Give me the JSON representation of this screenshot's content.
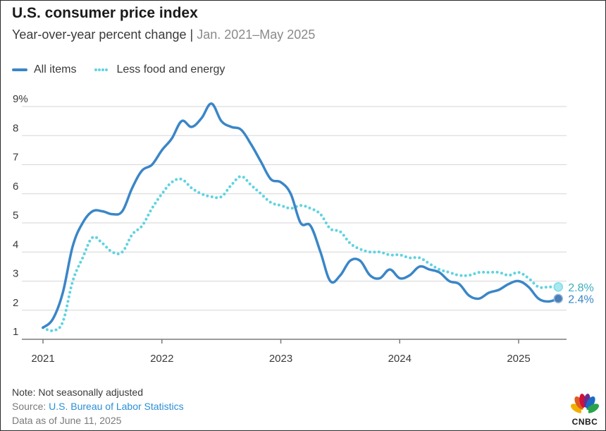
{
  "chart_data": {
    "type": "line",
    "title": "U.S. consumer price index",
    "subtitle_main": "Year-over-year percent change",
    "subtitle_sep": "|",
    "subtitle_range": "Jan. 2021–May 2025",
    "ylim": [
      1,
      9
    ],
    "y_ticks": [
      1,
      2,
      3,
      4,
      5,
      6,
      7,
      8,
      9
    ],
    "y_tick_labels": [
      "1",
      "2",
      "3",
      "4",
      "5",
      "6",
      "7",
      "8",
      "9%"
    ],
    "x_ticks": [
      "2021",
      "2022",
      "2023",
      "2024",
      "2025"
    ],
    "grid": true,
    "legend_position": "top-left",
    "series": [
      {
        "name": "All items",
        "color": "#3a86c8",
        "style": "solid",
        "end_label": "2.4%",
        "x": [
          "2021-01",
          "2021-02",
          "2021-03",
          "2021-04",
          "2021-05",
          "2021-06",
          "2021-07",
          "2021-08",
          "2021-09",
          "2021-10",
          "2021-11",
          "2021-12",
          "2022-01",
          "2022-02",
          "2022-03",
          "2022-04",
          "2022-05",
          "2022-06",
          "2022-07",
          "2022-08",
          "2022-09",
          "2022-10",
          "2022-11",
          "2022-12",
          "2023-01",
          "2023-02",
          "2023-03",
          "2023-04",
          "2023-05",
          "2023-06",
          "2023-07",
          "2023-08",
          "2023-09",
          "2023-10",
          "2023-11",
          "2023-12",
          "2024-01",
          "2024-02",
          "2024-03",
          "2024-04",
          "2024-05",
          "2024-06",
          "2024-07",
          "2024-08",
          "2024-09",
          "2024-10",
          "2024-11",
          "2024-12",
          "2025-01",
          "2025-02",
          "2025-03",
          "2025-04",
          "2025-05"
        ],
        "values": [
          1.4,
          1.7,
          2.6,
          4.2,
          5.0,
          5.4,
          5.4,
          5.3,
          5.4,
          6.2,
          6.8,
          7.0,
          7.5,
          7.9,
          8.5,
          8.3,
          8.6,
          9.1,
          8.5,
          8.3,
          8.2,
          7.7,
          7.1,
          6.5,
          6.4,
          6.0,
          5.0,
          4.9,
          4.0,
          3.0,
          3.2,
          3.7,
          3.7,
          3.2,
          3.1,
          3.4,
          3.1,
          3.2,
          3.5,
          3.4,
          3.3,
          3.0,
          2.9,
          2.5,
          2.4,
          2.6,
          2.7,
          2.9,
          3.0,
          2.8,
          2.4,
          2.3,
          2.4
        ]
      },
      {
        "name": "Less food and energy",
        "color": "#5fd3e0",
        "style": "dotted",
        "end_label": "2.8%",
        "x": [
          "2021-01",
          "2021-02",
          "2021-03",
          "2021-04",
          "2021-05",
          "2021-06",
          "2021-07",
          "2021-08",
          "2021-09",
          "2021-10",
          "2021-11",
          "2021-12",
          "2022-01",
          "2022-02",
          "2022-03",
          "2022-04",
          "2022-05",
          "2022-06",
          "2022-07",
          "2022-08",
          "2022-09",
          "2022-10",
          "2022-11",
          "2022-12",
          "2023-01",
          "2023-02",
          "2023-03",
          "2023-04",
          "2023-05",
          "2023-06",
          "2023-07",
          "2023-08",
          "2023-09",
          "2023-10",
          "2023-11",
          "2023-12",
          "2024-01",
          "2024-02",
          "2024-03",
          "2024-04",
          "2024-05",
          "2024-06",
          "2024-07",
          "2024-08",
          "2024-09",
          "2024-10",
          "2024-11",
          "2024-12",
          "2025-01",
          "2025-02",
          "2025-03",
          "2025-04",
          "2025-05"
        ],
        "values": [
          1.4,
          1.3,
          1.6,
          3.0,
          3.8,
          4.5,
          4.3,
          4.0,
          4.0,
          4.6,
          4.9,
          5.5,
          6.0,
          6.4,
          6.5,
          6.2,
          6.0,
          5.9,
          5.9,
          6.3,
          6.6,
          6.3,
          6.0,
          5.7,
          5.6,
          5.5,
          5.6,
          5.5,
          5.3,
          4.8,
          4.7,
          4.3,
          4.1,
          4.0,
          4.0,
          3.9,
          3.9,
          3.8,
          3.8,
          3.6,
          3.4,
          3.3,
          3.2,
          3.2,
          3.3,
          3.3,
          3.3,
          3.2,
          3.3,
          3.1,
          2.8,
          2.8,
          2.8
        ]
      }
    ]
  },
  "notes": {
    "note": "Note: Not seasonally adjusted",
    "source_label": "Source: ",
    "source_link": "U.S. Bureau of Labor Statistics",
    "as_of": "Data as of June 11, 2025"
  },
  "logo": {
    "text": "CNBC",
    "icon": "nbc-peacock-icon"
  }
}
